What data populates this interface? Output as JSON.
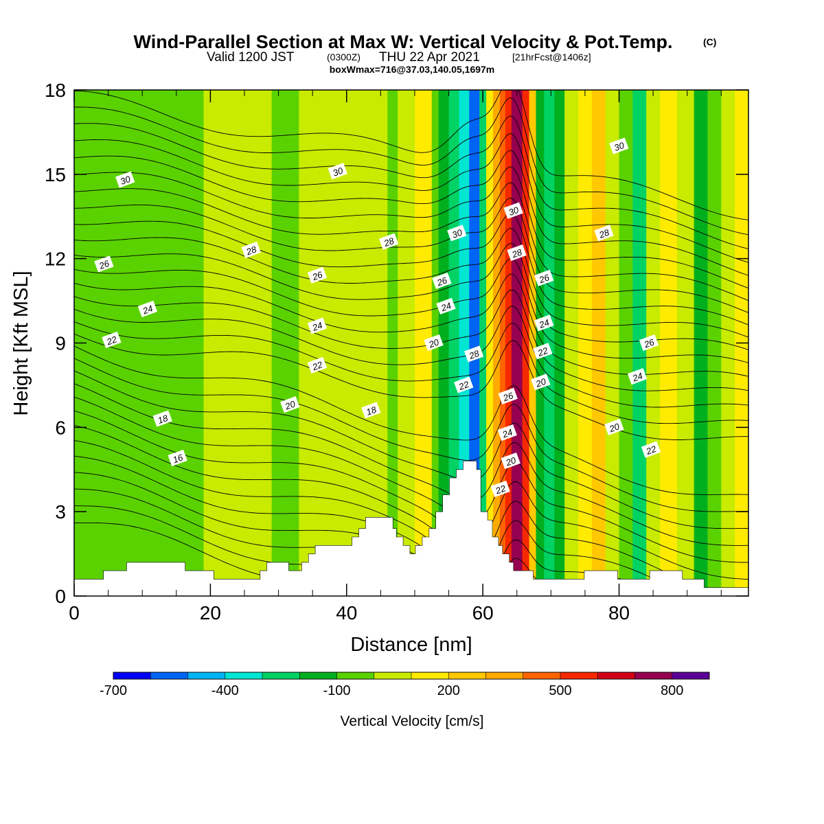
{
  "title": {
    "main": "Wind-Parallel Section at Max W: Vertical Velocity & Pot.Temp.",
    "copyright": "(C)",
    "valid_prefix": "Valid 1200 JST",
    "valid_utc": "(0300Z)",
    "valid_date": "THU 22 Apr 2021",
    "forecast": "[21hrFcst@1406z]",
    "boxwmax": "boxWmax=716@37.03,140.05,1697m"
  },
  "chart_data": {
    "type": "heatmap",
    "subtype": "vertical cross-section (filled contours of vertical velocity with potential temperature contour lines)",
    "xlabel": "Distance [nm]",
    "ylabel": "Height [Kft MSL]",
    "xlim": [
      0,
      99
    ],
    "ylim": [
      0,
      18
    ],
    "x_ticks": [
      0,
      20,
      40,
      60,
      80
    ],
    "y_ticks": [
      0,
      3,
      6,
      9,
      12,
      15,
      18
    ],
    "colorbar": {
      "title": "Vertical Velocity [cm/s]",
      "levels": [
        -700,
        -600,
        -500,
        -400,
        -300,
        -200,
        -100,
        0,
        100,
        200,
        300,
        400,
        500,
        600,
        700,
        800,
        900
      ],
      "tick_values": [
        -700,
        -400,
        -100,
        200,
        500,
        800
      ],
      "tick_labels": [
        "-700",
        "-400",
        "-100",
        "200",
        "500",
        "800"
      ],
      "colors": [
        "#0000f5",
        "#0064f5",
        "#00b4f5",
        "#00e6d2",
        "#00d264",
        "#00af1e",
        "#5ad200",
        "#c8eb00",
        "#ffeb00",
        "#ffc800",
        "#ffaa00",
        "#ff6400",
        "#f52800",
        "#d20014",
        "#960050",
        "#5a0096"
      ]
    },
    "velocity_bands": [
      {
        "x0": 0,
        "x1": 7,
        "class": "-100"
      },
      {
        "x0": 7,
        "x1": 19,
        "class": "-100"
      },
      {
        "x0": 19,
        "x1": 29,
        "class": "0"
      },
      {
        "x0": 29,
        "x1": 33,
        "class": "-100"
      },
      {
        "x0": 33,
        "x1": 37,
        "class": "0"
      },
      {
        "x0": 37,
        "x1": 46,
        "class": "0"
      },
      {
        "x0": 46,
        "x1": 47.5,
        "class": "-100"
      },
      {
        "x0": 47.5,
        "x1": 50,
        "class": "0"
      },
      {
        "x0": 50,
        "x1": 52.5,
        "class": "100"
      },
      {
        "x0": 52.5,
        "x1": 53.5,
        "class": "-100"
      },
      {
        "x0": 53.5,
        "x1": 55,
        "class": "-200"
      },
      {
        "x0": 55,
        "x1": 56.5,
        "class": "-300"
      },
      {
        "x0": 56.5,
        "x1": 58,
        "class": "-400"
      },
      {
        "x0": 58,
        "x1": 59.5,
        "class": "-600"
      },
      {
        "x0": 59.5,
        "x1": 60.5,
        "class": "-300"
      },
      {
        "x0": 60.5,
        "x1": 61.5,
        "class": "100"
      },
      {
        "x0": 61.5,
        "x1": 62.5,
        "class": "300"
      },
      {
        "x0": 62.5,
        "x1": 63.3,
        "class": "400"
      },
      {
        "x0": 63.3,
        "x1": 64.2,
        "class": "500"
      },
      {
        "x0": 64.2,
        "x1": 65.8,
        "class": "700"
      },
      {
        "x0": 65.8,
        "x1": 66.8,
        "class": "500"
      },
      {
        "x0": 66.8,
        "x1": 67.8,
        "class": "200"
      },
      {
        "x0": 67.8,
        "x1": 69,
        "class": "-200"
      },
      {
        "x0": 69,
        "x1": 70.5,
        "class": "-300"
      },
      {
        "x0": 70.5,
        "x1": 72,
        "class": "-200"
      },
      {
        "x0": 72,
        "x1": 74,
        "class": "0"
      },
      {
        "x0": 74,
        "x1": 76,
        "class": "100"
      },
      {
        "x0": 76,
        "x1": 78,
        "class": "200"
      },
      {
        "x0": 78,
        "x1": 80,
        "class": "0"
      },
      {
        "x0": 80,
        "x1": 82,
        "class": "-100"
      },
      {
        "x0": 82,
        "x1": 84,
        "class": "-300"
      },
      {
        "x0": 84,
        "x1": 86,
        "class": "0"
      },
      {
        "x0": 86,
        "x1": 88.5,
        "class": "100"
      },
      {
        "x0": 88.5,
        "x1": 91,
        "class": "0"
      },
      {
        "x0": 91,
        "x1": 93,
        "class": "-200"
      },
      {
        "x0": 93,
        "x1": 95,
        "class": "-100"
      },
      {
        "x0": 95,
        "x1": 97,
        "class": "0"
      },
      {
        "x0": 97,
        "x1": 99,
        "class": "100"
      }
    ],
    "terrain": [
      [
        0,
        0.6
      ],
      [
        4.3,
        0.6
      ],
      [
        4.3,
        0.9
      ],
      [
        7.7,
        0.9
      ],
      [
        7.7,
        1.2
      ],
      [
        16.3,
        1.2
      ],
      [
        16.3,
        0.9
      ],
      [
        20.5,
        0.9
      ],
      [
        20.5,
        0.6
      ],
      [
        27.3,
        0.6
      ],
      [
        27.3,
        0.9
      ],
      [
        28.3,
        0.9
      ],
      [
        28.3,
        1.2
      ],
      [
        31.5,
        1.2
      ],
      [
        31.5,
        0.9
      ],
      [
        33.4,
        0.9
      ],
      [
        33.4,
        1.2
      ],
      [
        34.4,
        1.2
      ],
      [
        34.4,
        1.5
      ],
      [
        35.4,
        1.5
      ],
      [
        35.4,
        1.8
      ],
      [
        40.8,
        1.8
      ],
      [
        40.8,
        2.1
      ],
      [
        41.8,
        2.1
      ],
      [
        41.8,
        2.4
      ],
      [
        42.8,
        2.4
      ],
      [
        42.8,
        2.8
      ],
      [
        46.8,
        2.8
      ],
      [
        46.8,
        2.4
      ],
      [
        47.3,
        2.4
      ],
      [
        47.3,
        2.1
      ],
      [
        48.3,
        2.1
      ],
      [
        48.3,
        1.8
      ],
      [
        49.3,
        1.8
      ],
      [
        49.3,
        1.5
      ],
      [
        50.1,
        1.5
      ],
      [
        50.1,
        1.8
      ],
      [
        51.1,
        1.8
      ],
      [
        51.1,
        2.1
      ],
      [
        52.1,
        2.1
      ],
      [
        52.1,
        2.4
      ],
      [
        53.1,
        2.4
      ],
      [
        53.1,
        3.0
      ],
      [
        54.1,
        3.0
      ],
      [
        54.1,
        3.6
      ],
      [
        55.1,
        3.6
      ],
      [
        55.1,
        4.2
      ],
      [
        56.1,
        4.2
      ],
      [
        56.1,
        4.5
      ],
      [
        57.1,
        4.5
      ],
      [
        57.1,
        4.8
      ],
      [
        59.1,
        4.8
      ],
      [
        59.1,
        4.5
      ],
      [
        59.7,
        4.5
      ],
      [
        59.7,
        3.0
      ],
      [
        60.7,
        3.0
      ],
      [
        60.7,
        2.7
      ],
      [
        61.4,
        2.7
      ],
      [
        61.4,
        2.1
      ],
      [
        62.3,
        2.1
      ],
      [
        62.3,
        1.8
      ],
      [
        62.9,
        1.8
      ],
      [
        62.9,
        1.5
      ],
      [
        63.9,
        1.5
      ],
      [
        63.9,
        1.2
      ],
      [
        64.5,
        1.2
      ],
      [
        64.5,
        0.9
      ],
      [
        67.4,
        0.9
      ],
      [
        67.4,
        0.6
      ],
      [
        74.9,
        0.6
      ],
      [
        74.9,
        0.9
      ],
      [
        79.8,
        0.9
      ],
      [
        79.8,
        0.6
      ],
      [
        84.5,
        0.6
      ],
      [
        84.5,
        0.9
      ],
      [
        89.3,
        0.9
      ],
      [
        89.3,
        0.6
      ],
      [
        92.5,
        0.6
      ],
      [
        92.5,
        0.3
      ],
      [
        99,
        0.3
      ]
    ],
    "contour_labels": [
      {
        "text": "30",
        "x": 7.5,
        "y": 14.8
      },
      {
        "text": "26",
        "x": 4.4,
        "y": 11.8
      },
      {
        "text": "24",
        "x": 10.8,
        "y": 10.2
      },
      {
        "text": "22",
        "x": 5.5,
        "y": 9.1
      },
      {
        "text": "18",
        "x": 13.0,
        "y": 6.3
      },
      {
        "text": "16",
        "x": 15.2,
        "y": 4.9
      },
      {
        "text": "28",
        "x": 26.0,
        "y": 12.3
      },
      {
        "text": "30",
        "x": 38.7,
        "y": 15.1
      },
      {
        "text": "26",
        "x": 35.7,
        "y": 11.4
      },
      {
        "text": "24",
        "x": 35.7,
        "y": 9.6
      },
      {
        "text": "22",
        "x": 35.7,
        "y": 8.2
      },
      {
        "text": "20",
        "x": 31.7,
        "y": 6.8
      },
      {
        "text": "18",
        "x": 43.6,
        "y": 6.6
      },
      {
        "text": "28",
        "x": 46.2,
        "y": 12.6
      },
      {
        "text": "30",
        "x": 56.2,
        "y": 12.9
      },
      {
        "text": "26",
        "x": 54.0,
        "y": 11.2
      },
      {
        "text": "24",
        "x": 54.6,
        "y": 10.3
      },
      {
        "text": "20",
        "x": 52.8,
        "y": 9.0
      },
      {
        "text": "28",
        "x": 58.7,
        "y": 8.6
      },
      {
        "text": "22",
        "x": 57.2,
        "y": 7.5
      },
      {
        "text": "30",
        "x": 64.5,
        "y": 13.7
      },
      {
        "text": "28",
        "x": 65.0,
        "y": 12.2
      },
      {
        "text": "26",
        "x": 63.7,
        "y": 7.1
      },
      {
        "text": "24",
        "x": 63.6,
        "y": 5.8
      },
      {
        "text": "20",
        "x": 64.1,
        "y": 4.8
      },
      {
        "text": "22",
        "x": 62.6,
        "y": 3.8
      },
      {
        "text": "26",
        "x": 69.0,
        "y": 11.3
      },
      {
        "text": "24",
        "x": 69.0,
        "y": 9.7
      },
      {
        "text": "22",
        "x": 68.8,
        "y": 8.7
      },
      {
        "text": "20",
        "x": 68.5,
        "y": 7.6
      },
      {
        "text": "30",
        "x": 80.0,
        "y": 16.0
      },
      {
        "text": "28",
        "x": 77.8,
        "y": 12.9
      },
      {
        "text": "26",
        "x": 84.4,
        "y": 9.0
      },
      {
        "text": "24",
        "x": 82.7,
        "y": 7.8
      },
      {
        "text": "20",
        "x": 79.3,
        "y": 6.0
      },
      {
        "text": "22",
        "x": 84.7,
        "y": 5.2
      }
    ]
  }
}
